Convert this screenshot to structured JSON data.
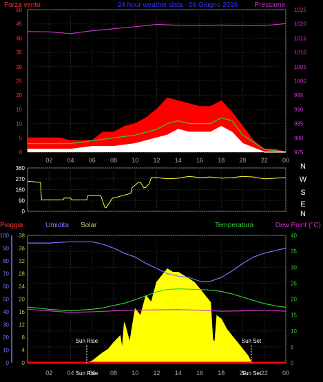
{
  "chart_data": [
    {
      "type": "line",
      "panel": "wind-pressure",
      "title": "24 hour weather data - 06 Giugno 2016",
      "left_label": "Forza vento",
      "right_label": "Pressione",
      "x_ticks": [
        "02",
        "04",
        "06",
        "08",
        "10",
        "12",
        "14",
        "16",
        "18",
        "20",
        "22",
        "00"
      ],
      "left_ticks": [
        "0",
        "5",
        "10",
        "15",
        "20",
        "25",
        "30",
        "35",
        "40",
        "45",
        "50"
      ],
      "right_ticks": [
        "975",
        "980",
        "985",
        "990",
        "995",
        "1000",
        "1005",
        "1010",
        "1015",
        "1020",
        "1025"
      ],
      "left_range": [
        0,
        50
      ],
      "right_range": [
        975,
        1025
      ],
      "grid": true,
      "series": [
        {
          "key": "pressure",
          "color": "#cc33cc",
          "axis": "right",
          "x": [
            0,
            2,
            4,
            6,
            8,
            10,
            12,
            14,
            16,
            18,
            20,
            22,
            24
          ],
          "y": [
            1017.3,
            1017.2,
            1016.6,
            1017.6,
            1018.3,
            1019.0,
            1019.8,
            1019.5,
            1019.4,
            1019.6,
            1019.4,
            1019.4,
            1020.1
          ]
        },
        {
          "key": "gust",
          "color": "#ff0000",
          "axis": "left",
          "fill": true,
          "x": [
            0,
            1,
            2,
            3,
            4,
            5,
            6,
            7,
            8,
            9,
            10,
            11,
            12,
            13,
            14,
            15,
            16,
            17,
            18,
            19,
            20,
            21,
            22,
            23,
            24
          ],
          "y": [
            5,
            5,
            5,
            5,
            4,
            4,
            4,
            7,
            7,
            9,
            10,
            12,
            15,
            19,
            18,
            17,
            16,
            16,
            18,
            14,
            9,
            4,
            1,
            1,
            0
          ]
        },
        {
          "key": "avg",
          "color": "#33cc33",
          "axis": "left",
          "x": [
            0,
            2,
            4,
            6,
            8,
            10,
            12,
            13,
            14,
            15,
            16,
            17,
            18,
            19,
            20,
            22,
            24
          ],
          "y": [
            3,
            3,
            3,
            4,
            5,
            6,
            8,
            10,
            11,
            10,
            10,
            10,
            12,
            11,
            6,
            1,
            0
          ]
        },
        {
          "key": "min",
          "color": "#ffffff",
          "axis": "left",
          "fill": true,
          "x": [
            0,
            2,
            4,
            6,
            8,
            10,
            12,
            13,
            14,
            15,
            16,
            17,
            18,
            19,
            20,
            22,
            24
          ],
          "y": [
            1,
            1,
            1,
            2,
            2,
            3,
            5,
            6,
            8,
            7,
            7,
            7,
            9,
            7,
            3,
            0,
            0
          ]
        }
      ]
    },
    {
      "type": "line",
      "panel": "wind-direction",
      "y_ticks": [
        "0",
        "90",
        "180",
        "270",
        "360"
      ],
      "y_range": [
        0,
        360
      ],
      "compass": [
        "N",
        "W",
        "S",
        "E",
        "N"
      ],
      "grid": true,
      "series": [
        {
          "key": "direction",
          "color": "#ffff33",
          "x": [
            0,
            1.2,
            1.3,
            3.3,
            3.4,
            4.0,
            4.1,
            5.5,
            5.6,
            6.8,
            7.2,
            7.3,
            7.9,
            8.0,
            9.6,
            9.7,
            10.3,
            10.5,
            10.8,
            11.0,
            11.3,
            11.5,
            12,
            13,
            14,
            15,
            16,
            17,
            18,
            19,
            20,
            21,
            22,
            23,
            24
          ],
          "y": [
            250,
            240,
            95,
            95,
            110,
            110,
            95,
            95,
            130,
            130,
            30,
            30,
            110,
            110,
            150,
            195,
            240,
            240,
            195,
            200,
            230,
            280,
            280,
            270,
            275,
            290,
            280,
            285,
            275,
            280,
            290,
            285,
            270,
            275,
            280
          ]
        }
      ]
    },
    {
      "type": "line",
      "panel": "temp-humidity-solar",
      "labels": {
        "rain": "Pioggia",
        "humidity": "Umidita",
        "solar": "Solar",
        "temperature": "Temperatura",
        "dewpoint": "Dew Point (°C)"
      },
      "x_ticks": [
        "02",
        "04",
        "06",
        "08",
        "10",
        "12",
        "14",
        "16",
        "18",
        "20",
        "22",
        "00"
      ],
      "sun_rise_tick": "Sun Rise",
      "sun_set_tick": "Sun Set",
      "sun_rise_label": "Sun Rise",
      "sun_set_label": "Sun Set",
      "sun_rise_hour": 5.5,
      "sun_set_hour": 20.8,
      "humidity_ticks": [
        "0",
        "10",
        "20",
        "30",
        "40",
        "50",
        "60",
        "70",
        "80",
        "90",
        "100"
      ],
      "solar_ticks": [
        "0",
        "4",
        "8",
        "12",
        "16",
        "20",
        "24",
        "28",
        "32",
        "36",
        "38"
      ],
      "temp_ticks": [
        "0",
        "5",
        "10",
        "15",
        "20",
        "25",
        "30",
        "35",
        "40"
      ],
      "humidity_range": [
        0,
        100
      ],
      "temp_range": [
        0,
        40
      ],
      "grid": true,
      "series": [
        {
          "key": "solar",
          "color": "#ffff00",
          "axis": "solar",
          "fill": true,
          "x": [
            5.5,
            6,
            7,
            7.5,
            8,
            8.6,
            8.8,
            9,
            9.5,
            10,
            10.5,
            11,
            11.5,
            12,
            12.5,
            13,
            13.5,
            14,
            14.5,
            15,
            15.5,
            16,
            16.5,
            17,
            17.2,
            17.4,
            17.6,
            18,
            18.5,
            19,
            19.5,
            20,
            20.5,
            20.8
          ],
          "y": [
            0,
            0.5,
            3,
            4,
            6,
            8,
            4,
            12,
            6,
            16,
            14,
            20,
            18,
            24,
            26,
            28,
            27,
            27,
            26,
            25,
            24,
            22,
            20,
            18,
            7,
            6,
            14,
            13,
            10,
            8,
            6,
            4,
            2,
            0
          ]
        },
        {
          "key": "humidity",
          "color": "#7777ff",
          "axis": "humidity",
          "x": [
            0,
            2,
            4,
            6,
            7,
            8,
            9,
            10,
            11,
            12,
            13,
            14,
            15,
            16,
            17,
            18,
            19,
            20,
            21,
            22,
            23,
            24
          ],
          "y": [
            94,
            94,
            95,
            95,
            93,
            90,
            86,
            83,
            78,
            74,
            70,
            68,
            67,
            64,
            64,
            67,
            72,
            78,
            83,
            86,
            88,
            90
          ]
        },
        {
          "key": "temperature",
          "color": "#33cc33",
          "axis": "temp",
          "x": [
            0,
            2,
            4,
            6,
            7,
            8,
            9,
            10,
            11,
            12,
            13,
            14,
            15,
            16,
            17,
            18,
            19,
            20,
            21,
            22,
            23,
            24
          ],
          "y": [
            17.5,
            16.8,
            16.3,
            16.8,
            17.2,
            18,
            18.7,
            19.8,
            21,
            22.3,
            23,
            23.2,
            23.1,
            23,
            22.8,
            22.4,
            21.6,
            20.6,
            19.6,
            18.6,
            17.9,
            17.4
          ]
        },
        {
          "key": "dewpoint",
          "color": "#cc33cc",
          "axis": "temp",
          "x": [
            0,
            2,
            4,
            6,
            8,
            10,
            12,
            14,
            16,
            18,
            20,
            22,
            24
          ],
          "y": [
            16.8,
            16.3,
            15.8,
            16,
            16.3,
            16.5,
            16.6,
            16.7,
            16.5,
            16.2,
            16.3,
            16.5,
            16.2
          ]
        },
        {
          "key": "rain",
          "color": "#ff0000",
          "axis": "humidity",
          "x": [
            0,
            24
          ],
          "y": [
            0,
            0
          ]
        }
      ]
    }
  ]
}
